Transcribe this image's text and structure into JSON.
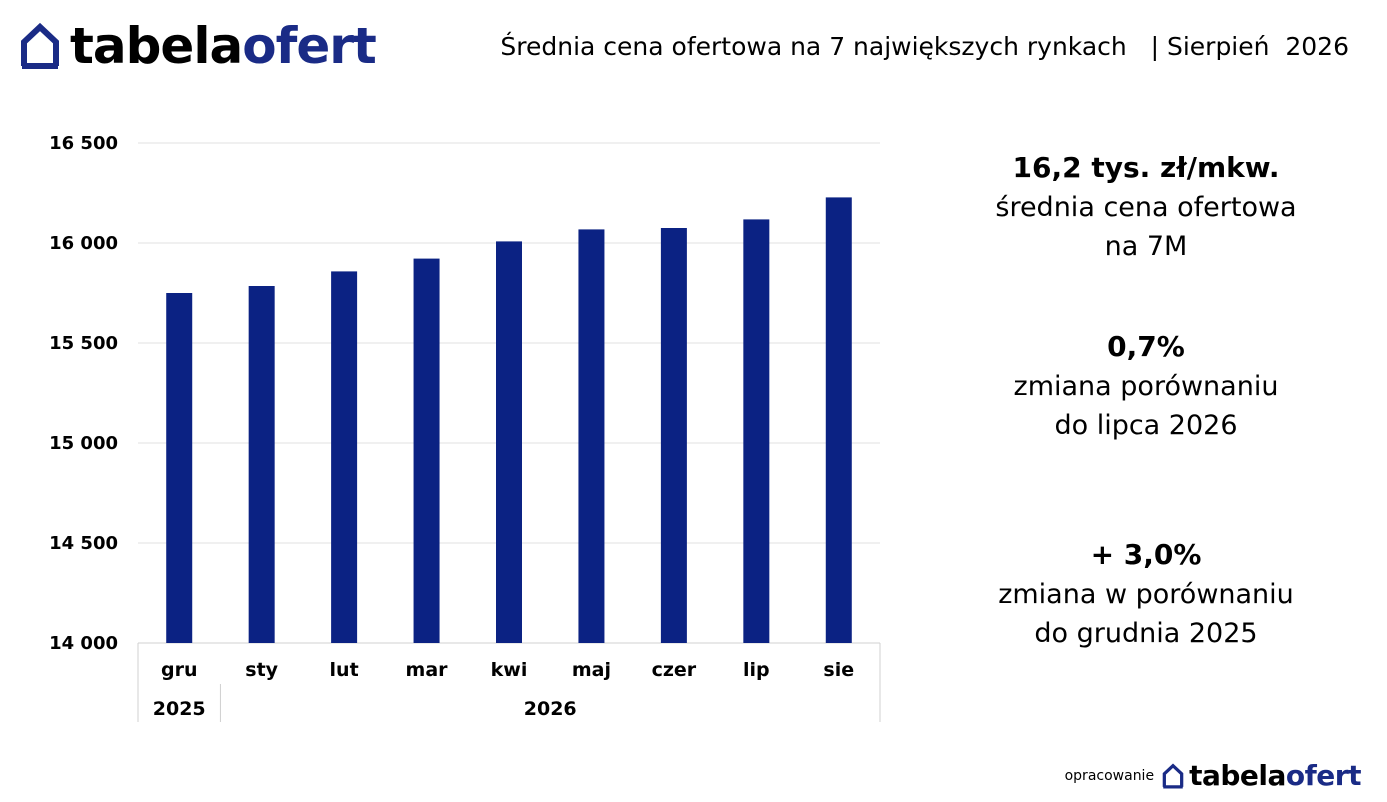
{
  "logo": {
    "part1": "tabela",
    "part2": "ofert",
    "color": "#1a2b86"
  },
  "header": {
    "title": "Średnia cena ofertowa na 7 największych rynkach   | Sierpień  2026"
  },
  "chart_data": {
    "type": "bar",
    "categories": [
      "gru",
      "sty",
      "lut",
      "mar",
      "kwi",
      "maj",
      "czer",
      "lip",
      "sie"
    ],
    "year_groups": [
      {
        "label": "2025",
        "span": 1
      },
      {
        "label": "2026",
        "span": 8
      }
    ],
    "values": [
      15750,
      15785,
      15858,
      15922,
      16008,
      16068,
      16075,
      16118,
      16228
    ],
    "ylim": [
      14000,
      16500
    ],
    "yticks": [
      14000,
      14500,
      15000,
      15500,
      16000,
      16500
    ],
    "ytick_labels": [
      "14 000",
      "14 500",
      "15 000",
      "15 500",
      "16 000",
      "16 500"
    ],
    "bar_color": "#0b2283",
    "grid": true,
    "title": "",
    "xlabel": "",
    "ylabel": ""
  },
  "stats": [
    {
      "value": "16,2 tys. zł/mkw.",
      "desc": "średnia cena ofertowa\nna 7M"
    },
    {
      "value": "0,7%",
      "desc": "zmiana porównaniu\ndo lipca 2026"
    },
    {
      "value": "+ 3,0%",
      "desc": "zmiana w porównaniu\ndo grudnia 2025"
    }
  ],
  "footer": {
    "prepared_by": "opracowanie"
  }
}
